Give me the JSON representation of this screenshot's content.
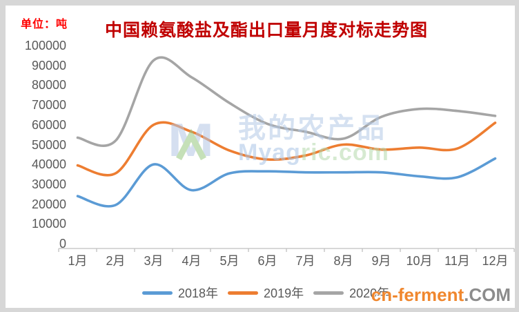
{
  "header": {
    "unit_label": "单位：吨",
    "unit_color": "#ff0000",
    "title": "中国赖氨酸盐及酯出口量月度对标走势图",
    "title_color": "#c00000"
  },
  "watermark": {
    "logo": "myagric-logo",
    "cn_text": "我的农产品",
    "en_blue": "Myag",
    "en_green": "ric.com"
  },
  "site_logo": {
    "part1": "cn-ferment",
    "part2": ".COM",
    "color1": "#f0872e",
    "color2": "#8c8c8c"
  },
  "chart_data": {
    "type": "line",
    "title": "中国赖氨酸盐及酯出口量月度对标走势图",
    "unit": "单位：吨",
    "categories": [
      "1月",
      "2月",
      "3月",
      "4月",
      "5月",
      "6月",
      "7月",
      "8月",
      "9月",
      "10月",
      "11月",
      "12月"
    ],
    "series": [
      {
        "name": "2018年",
        "color": "#5B9BD5",
        "values": [
          24000,
          19500,
          40000,
          27000,
          35500,
          36500,
          36000,
          36000,
          36000,
          34000,
          33500,
          43000
        ]
      },
      {
        "name": "2019年",
        "color": "#ED7D31",
        "values": [
          39500,
          35500,
          60000,
          56500,
          47000,
          42500,
          44500,
          50000,
          47500,
          48500,
          48000,
          61000
        ]
      },
      {
        "name": "2020年",
        "color": "#A5A5A5",
        "values": [
          53500,
          52000,
          92500,
          84000,
          71000,
          60500,
          56500,
          53000,
          64000,
          68000,
          67000,
          64500
        ]
      }
    ],
    "ylim": [
      0,
      100000
    ],
    "yticks": [
      0,
      10000,
      20000,
      30000,
      40000,
      50000,
      60000,
      70000,
      80000,
      90000,
      100000
    ],
    "grid": false,
    "axis_color": "#bfbfbf",
    "label_color": "#595959",
    "legend_position": "bottom",
    "line_smooth": true
  }
}
